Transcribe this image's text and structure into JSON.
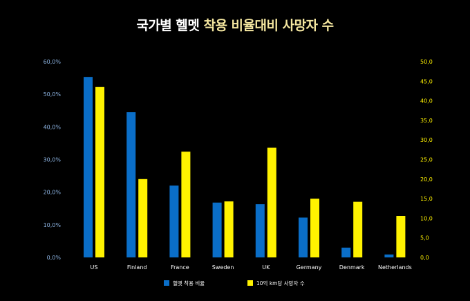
{
  "chart_data": {
    "type": "bar",
    "title_parts": [
      "국가별 헬멧 ",
      "착용 비율대비 사망자 수"
    ],
    "categories": [
      "US",
      "Finland",
      "France",
      "Sweden",
      "UK",
      "Germany",
      "Denmark",
      "Netherlands"
    ],
    "series": [
      {
        "name": "헬멧 착용 비율",
        "axis": "left",
        "color": "#0a6ec8",
        "values": [
          55.3,
          44.5,
          22.0,
          16.8,
          16.3,
          12.2,
          3.0,
          0.9
        ]
      },
      {
        "name": "10억 km당 사망자 수",
        "axis": "right",
        "color": "#fff200",
        "values": [
          43.5,
          20.0,
          27.0,
          14.3,
          28.0,
          15.0,
          14.2,
          10.6
        ]
      }
    ],
    "y_left": {
      "range": [
        0,
        60
      ],
      "ticks": [
        "0,0%",
        "10,0%",
        "20,0%",
        "30,0%",
        "40,0%",
        "50,0%",
        "60,0%"
      ],
      "tick_color": "#8fb7e6"
    },
    "y_right": {
      "range": [
        0,
        50
      ],
      "ticks": [
        "0,0",
        "5,0",
        "10,0",
        "15,0",
        "20,0",
        "25,0",
        "30,0",
        "35,0",
        "40,0",
        "45,0",
        "50,0"
      ],
      "tick_color": "#fff200"
    },
    "grid": false,
    "legend_position": "bottom-center"
  }
}
